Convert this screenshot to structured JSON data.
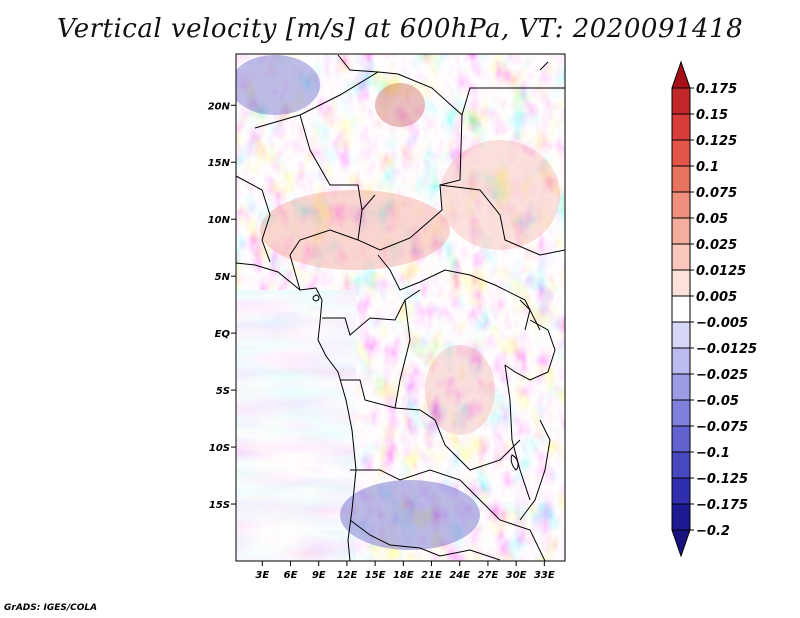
{
  "title": "Vertical velocity [m/s] at 600hPa, VT: 2020091418",
  "credit": "GrADS: IGES/COLA",
  "map": {
    "lat_labels": [
      "20N",
      "15N",
      "10N",
      "5N",
      "EQ",
      "5S",
      "10S",
      "15S"
    ],
    "lat_values": [
      20,
      15,
      10,
      5,
      0,
      -5,
      -10,
      -15
    ],
    "lon_labels": [
      "3E",
      "6E",
      "9E",
      "12E",
      "15E",
      "18E",
      "21E",
      "24E",
      "27E",
      "30E",
      "33E"
    ],
    "lon_values": [
      3,
      6,
      9,
      12,
      15,
      18,
      21,
      24,
      27,
      30,
      33
    ],
    "lon_range": [
      0.2,
      35.2
    ],
    "lat_range": [
      -20,
      24.5
    ]
  },
  "colorbar": {
    "labels": [
      "0.175",
      "0.15",
      "0.125",
      "0.1",
      "0.075",
      "0.05",
      "0.025",
      "0.0125",
      "0.005",
      "−0.005",
      "−0.0125",
      "−0.025",
      "−0.05",
      "−0.075",
      "−0.1",
      "−0.125",
      "−0.175",
      "−0.2"
    ],
    "colors": [
      "#a50f15",
      "#c0282a",
      "#d63c3a",
      "#e25548",
      "#e8735f",
      "#ef907c",
      "#f5ad9e",
      "#fac8bd",
      "#fde2db",
      "#ffffff",
      "#d6d6f6",
      "#bbbbef",
      "#9c9ce6",
      "#7f7fdc",
      "#6262cf",
      "#4848c0",
      "#2f2fae",
      "#1b1a93",
      "#16127e"
    ]
  }
}
